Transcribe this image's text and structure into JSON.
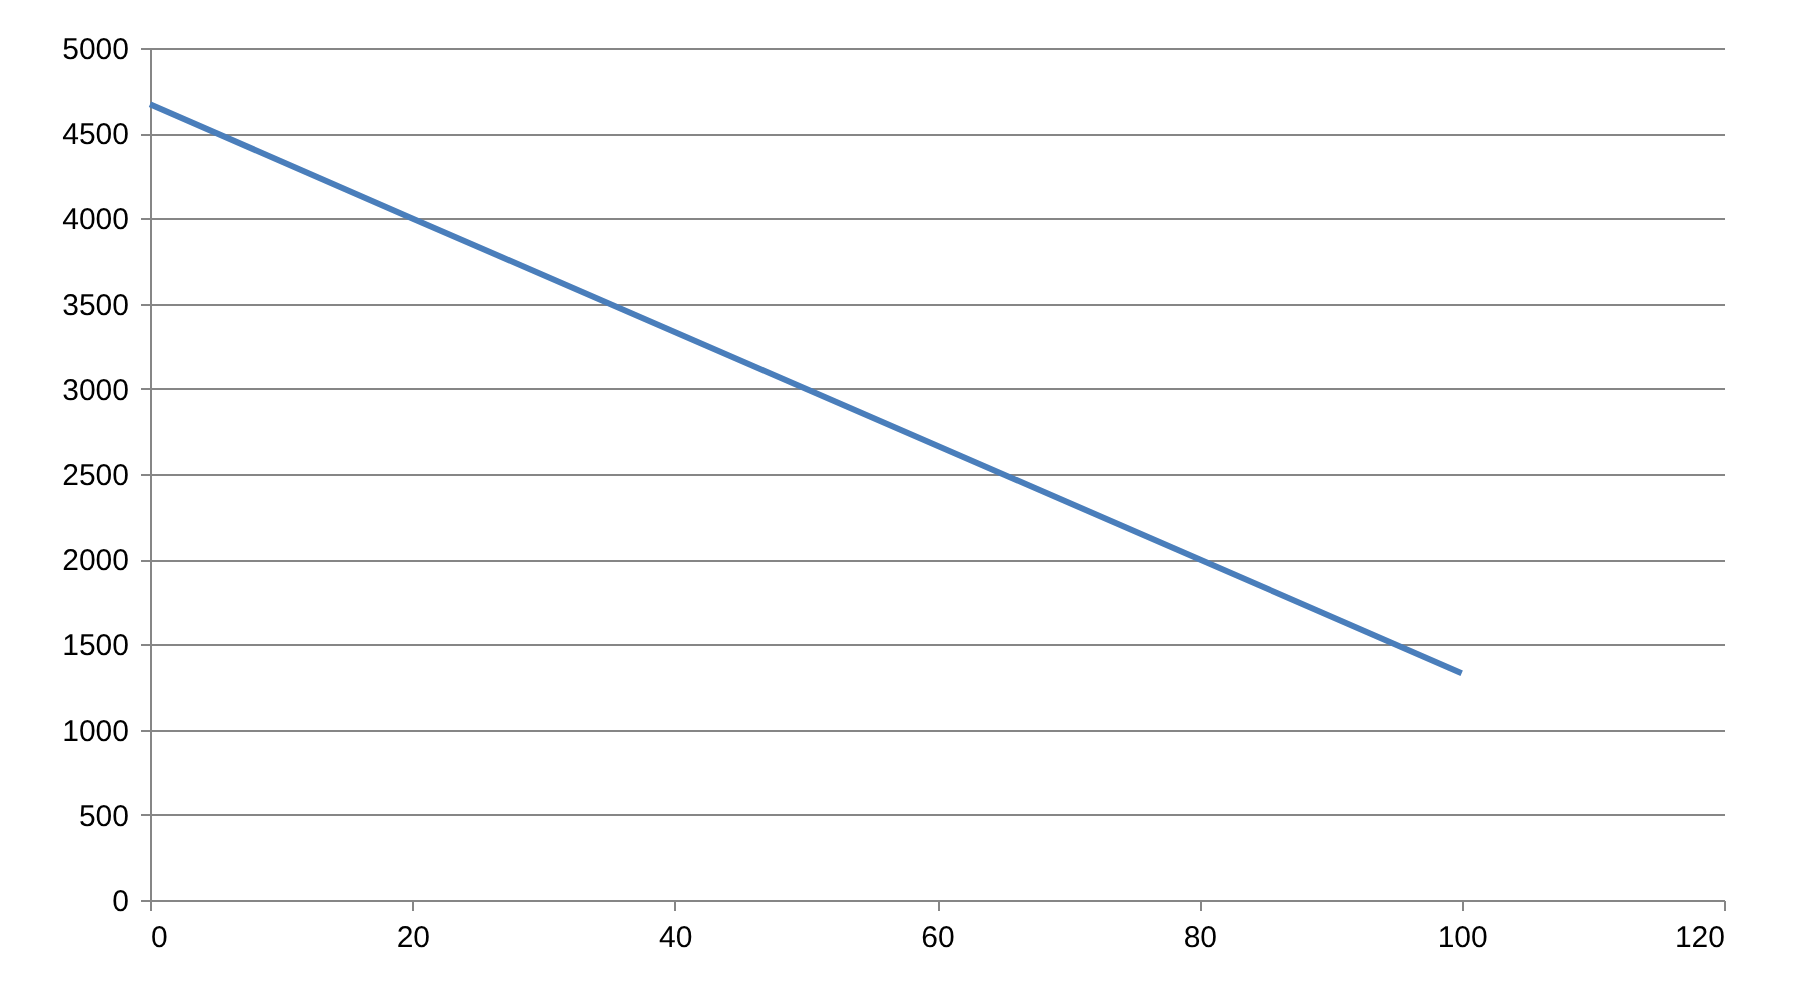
{
  "chart_data": {
    "type": "line",
    "x": [
      0,
      20,
      50,
      80,
      100
    ],
    "series": [
      {
        "color": "#4a7ebb",
        "values": [
          4670,
          4000,
          3000,
          2000,
          1330
        ]
      }
    ],
    "xlim": [
      0,
      120
    ],
    "xticks": [
      0,
      20,
      40,
      60,
      80,
      100,
      120
    ],
    "ylim": [
      0,
      5000
    ],
    "yticks": [
      0,
      500,
      1000,
      1500,
      2000,
      2500,
      3000,
      3500,
      4000,
      4500,
      5000
    ],
    "grid": "y",
    "marker": "none",
    "line_style": "solid",
    "legend": false
  }
}
